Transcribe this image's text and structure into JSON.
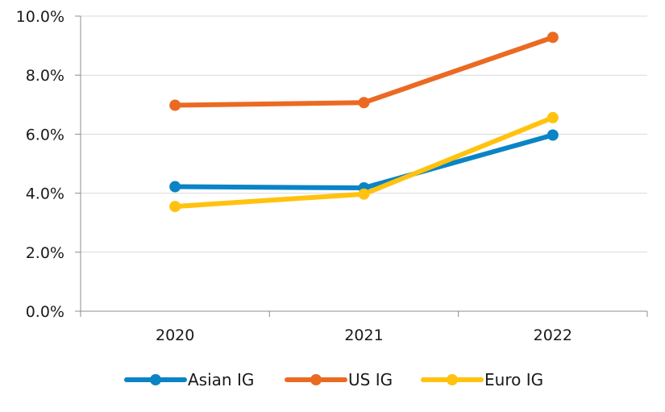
{
  "chart_data": {
    "type": "line",
    "title": "",
    "xlabel": "",
    "ylabel": "",
    "categories": [
      "2020",
      "2021",
      "2022"
    ],
    "ylim": [
      0,
      10
    ],
    "yticks": [
      0,
      2,
      4,
      6,
      8,
      10
    ],
    "ytick_labels": [
      "0.0%",
      "2.0%",
      "4.0%",
      "6.0%",
      "8.0%",
      "10.0%"
    ],
    "grid": "horizontal",
    "legend_position": "bottom",
    "series": [
      {
        "name": "Asian IG",
        "color": "#0a84c6",
        "values": [
          4.22,
          4.18,
          5.97
        ]
      },
      {
        "name": "US IG",
        "color": "#eb6a22",
        "values": [
          6.98,
          7.07,
          9.28
        ]
      },
      {
        "name": "Euro IG",
        "color": "#ffc20e",
        "values": [
          3.55,
          3.97,
          6.56
        ]
      }
    ]
  }
}
